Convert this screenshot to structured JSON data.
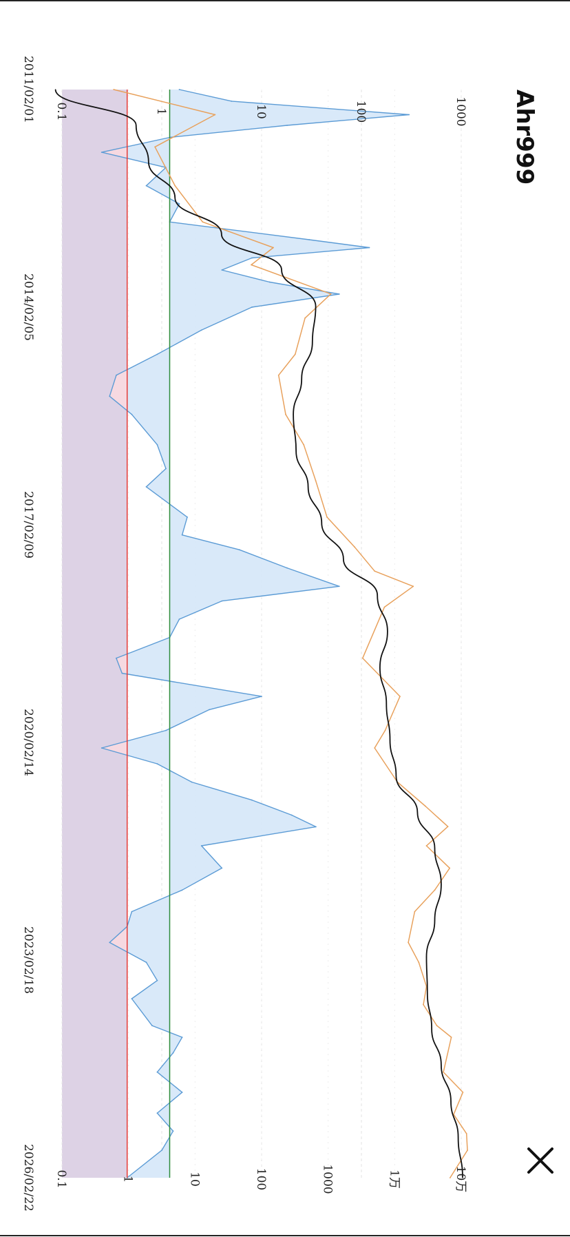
{
  "header": {
    "title": "Ahr999",
    "close_icon": "close-icon"
  },
  "chart_data": {
    "type": "line",
    "orientation": "rotated 90° clockwise (time runs top to bottom)",
    "date_ticks": [
      "2011/02/01",
      "2014/02/05",
      "2017/02/09",
      "2020/02/14",
      "2023/02/18",
      "2026/02/22"
    ],
    "left_axis": {
      "label": "",
      "scale": "log",
      "range": [
        0.1,
        1000
      ],
      "ticks": [
        "0.1",
        "1",
        "10",
        "100",
        "1000"
      ]
    },
    "right_axis": {
      "label": "",
      "scale": "log",
      "range": [
        0.1,
        100000
      ],
      "ticks": [
        "0.1",
        "1",
        "10",
        "100",
        "1000",
        "1万",
        "10万"
      ]
    },
    "thresholds": [
      {
        "value": 0.45,
        "color": "#e53935"
      },
      {
        "value": 1.2,
        "color": "#2e8b3a"
      }
    ],
    "colors": {
      "ahr999": "#5b9bd5",
      "ahr999_fill": "#d7e8f9",
      "price": "#e8a15c",
      "moving_average": "#111111",
      "bottom_zone": "#ddd2e5",
      "below_threshold_fill": "#f6d9e1"
    },
    "grid": "dashed, faint",
    "series": [
      {
        "axis": "left",
        "x": [
          "2011/02/01",
          "2011/04/01",
          "2011/06/08",
          "2011/08/01",
          "2011/10/01",
          "2011/12/15",
          "2012/03/01",
          "2012/06/01",
          "2012/09/01",
          "2012/12/01",
          "2013/03/01",
          "2013/04/10",
          "2013/06/01",
          "2013/08/01",
          "2013/10/01",
          "2013/12/01",
          "2014/02/05",
          "2014/06/01",
          "2014/10/01",
          "2015/01/15",
          "2015/05/01",
          "2015/08/01",
          "2016/01/01",
          "2016/05/01",
          "2016/08/01",
          "2017/01/01",
          "2017/04/01",
          "2017/06/15",
          "2017/09/15",
          "2017/12/17",
          "2018/03/01",
          "2018/06/01",
          "2018/09/01",
          "2018/12/15",
          "2019/03/01",
          "2019/06/26",
          "2019/09/01",
          "2019/12/15",
          "2020/03/13",
          "2020/06/01",
          "2020/09/01",
          "2020/12/01",
          "2021/02/15",
          "2021/04/15",
          "2021/07/20",
          "2021/11/10",
          "2022/03/01",
          "2022/06/18",
          "2022/09/01",
          "2022/11/21",
          "2023/03/01",
          "2023/06/01",
          "2023/09/01",
          "2024/01/15",
          "2024/03/14",
          "2024/06/01",
          "2024/09/06",
          "2024/12/17",
          "2025/04/01",
          "2025/07/01",
          "2025/10/06",
          "2026/02/22"
        ],
        "y": [
          1.5,
          5,
          300,
          18,
          1.2,
          0.25,
          1.1,
          0.7,
          1.5,
          1.2,
          30,
          120,
          8,
          4,
          12,
          60,
          8,
          2.5,
          0.9,
          0.35,
          0.3,
          0.5,
          0.9,
          1.1,
          0.7,
          1.8,
          1.6,
          6,
          18,
          60,
          4,
          1.5,
          1.2,
          0.35,
          0.4,
          10,
          3,
          1.1,
          0.25,
          0.9,
          2,
          8,
          20,
          35,
          2.5,
          4,
          1.6,
          0.5,
          0.45,
          0.3,
          0.7,
          0.9,
          0.5,
          0.8,
          1.6,
          1.3,
          0.9,
          1.6,
          0.9,
          1.3,
          1.0,
          0.45
        ]
      },
      {
        "axis": "right",
        "x": [
          "2011/02/01",
          "2011/06/08",
          "2011/11/18",
          "2012/06/01",
          "2012/12/01",
          "2013/04/10",
          "2013/07/06",
          "2013/11/30",
          "2014/04/01",
          "2014/10/01",
          "2015/01/15",
          "2015/08/01",
          "2016/01/01",
          "2016/07/01",
          "2017/01/01",
          "2017/06/01",
          "2017/10/01",
          "2017/12/17",
          "2018/04/01",
          "2018/12/15",
          "2019/06/26",
          "2019/12/15",
          "2020/03/13",
          "2020/09/01",
          "2021/01/01",
          "2021/04/14",
          "2021/07/20",
          "2021/11/10",
          "2022/03/01",
          "2022/06/18",
          "2022/11/21",
          "2023/03/01",
          "2023/07/01",
          "2023/10/01",
          "2024/01/15",
          "2024/03/14",
          "2024/09/06",
          "2024/12/17",
          "2025/04/08",
          "2025/07/14",
          "2025/10/06",
          "2026/02/22"
        ],
        "y": [
          0.6,
          20,
          2.5,
          5,
          13,
          150,
          70,
          1100,
          450,
          320,
          180,
          230,
          430,
          650,
          960,
          2500,
          5000,
          19000,
          7000,
          3300,
          12000,
          7200,
          5000,
          11000,
          29000,
          63000,
          30000,
          67000,
          40000,
          20000,
          16000,
          23000,
          30000,
          27000,
          43000,
          71000,
          54000,
          106000,
          77000,
          120000,
          124000,
          68000
        ]
      },
      {
        "axis": "right",
        "x": [
          "2011/02/01",
          "2011/08/01",
          "2012/02/01",
          "2012/08/01",
          "2013/02/01",
          "2013/08/01",
          "2014/02/01",
          "2014/08/01",
          "2015/02/01",
          "2015/08/01",
          "2016/02/01",
          "2016/08/01",
          "2017/02/01",
          "2017/08/01",
          "2018/02/01",
          "2018/08/01",
          "2019/02/01",
          "2019/08/01",
          "2020/02/01",
          "2020/08/01",
          "2021/02/01",
          "2021/08/01",
          "2022/02/01",
          "2022/08/01",
          "2023/02/01",
          "2023/08/01",
          "2024/02/01",
          "2024/08/01",
          "2025/02/01",
          "2025/08/01",
          "2026/02/22"
        ],
        "y": [
          0.08,
          1.3,
          2,
          5,
          25,
          200,
          650,
          580,
          400,
          300,
          330,
          500,
          800,
          1700,
          5500,
          7800,
          6000,
          7500,
          8500,
          10500,
          22000,
          40000,
          50000,
          40000,
          30000,
          31000,
          36000,
          50000,
          70000,
          90000,
          105000
        ]
      }
    ]
  }
}
